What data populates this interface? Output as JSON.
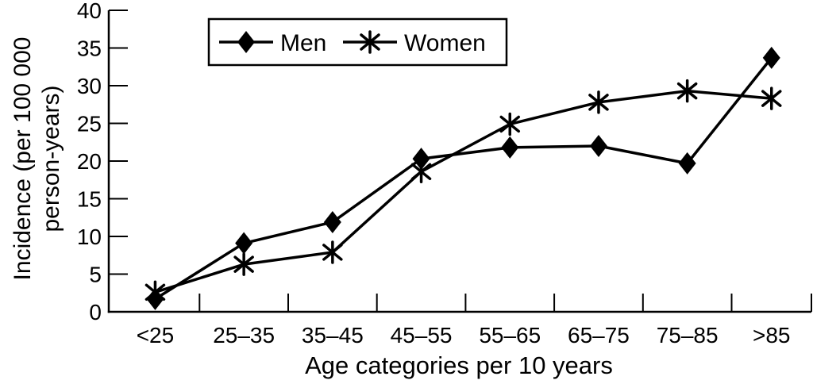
{
  "figure": {
    "background_color": "#ffffff",
    "line_color": "#000000"
  },
  "chart_data": {
    "type": "line",
    "title": "",
    "xlabel": "Age categories per 10 years",
    "ylabel": "Incidence (per 100 000 person-years)",
    "ylabel_lines": [
      "Incidence (per 100 000",
      "person-years)"
    ],
    "categories": [
      "<25",
      "25–35",
      "35–45",
      "45–55",
      "55–65",
      "65–75",
      "75–85",
      ">85"
    ],
    "y_ticks": [
      0,
      5,
      10,
      15,
      20,
      25,
      30,
      35,
      40
    ],
    "ylim": [
      0,
      40
    ],
    "grid": false,
    "legend_position": "top-center-inside",
    "series": [
      {
        "name": "Men",
        "marker": "diamond",
        "color": "#000000",
        "values": [
          1.7,
          9.1,
          11.9,
          20.3,
          21.8,
          22.0,
          19.7,
          33.7
        ]
      },
      {
        "name": "Women",
        "marker": "asterisk",
        "color": "#000000",
        "values": [
          2.6,
          6.3,
          7.9,
          18.6,
          24.9,
          27.8,
          29.3,
          28.3
        ]
      }
    ]
  }
}
